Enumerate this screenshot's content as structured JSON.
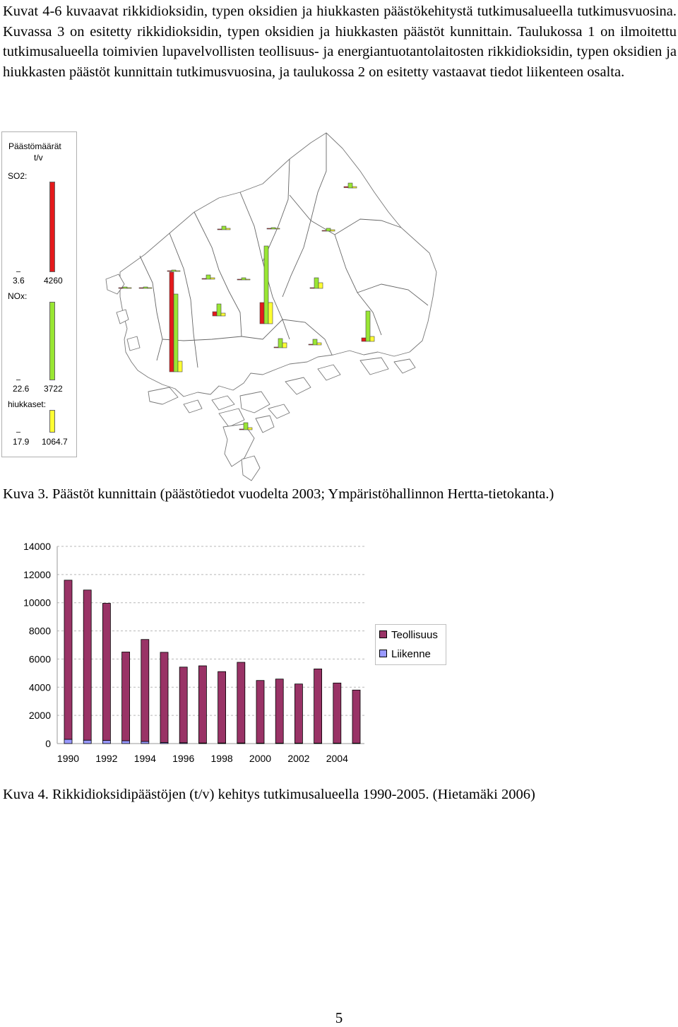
{
  "intro_text": "Kuvat 4-6 kuvaavat rikkidioksidin, typen oksidien ja hiukkasten päästökehitystä tutkimusalueella tutkimusvuosina. Kuvassa 3 on esitetty rikkidioksidin, typen oksidien ja hiukkasten päästöt kunnittain. Taulukossa 1 on ilmoitettu tutkimusalueella toimivien lupavelvollisten teollisuus- ja energiantuotantolaitosten rikkidioksidin, typen oksidien ja hiukkasten päästöt kunnittain tutkimusvuosina, ja taulukossa 2 on esitetty vastaavat tiedot liikenteen osalta.",
  "map_legend": {
    "title_line1": "Päästömäärät",
    "title_line2": "t/v",
    "so2_label": "SO2:",
    "so2_min": "3.6",
    "so2_max": "4260",
    "nox_label": "NOx:",
    "nox_min": "22.6",
    "nox_max": "3722",
    "particles_label": "hiukkaset:",
    "particles_min": "17.9",
    "particles_max": "1064.7",
    "colors": {
      "so2": "#e31a1c",
      "nox": "#99e633",
      "particles": "#ffff33"
    }
  },
  "caption_map": "Kuva 3. Päästöt kunnittain (päästötiedot vuodelta 2003; Ympäristöhallinnon Hertta-tietokanta.)",
  "chart_data": {
    "type": "bar",
    "stacked": true,
    "categories": [
      "1990",
      "1991",
      "1992",
      "1993",
      "1994",
      "1995",
      "1996",
      "1997",
      "1998",
      "1999",
      "2000",
      "2001",
      "2002",
      "2003",
      "2004",
      "2005"
    ],
    "x_tick_labels": [
      "1990",
      "1992",
      "1994",
      "1996",
      "1998",
      "2000",
      "2002",
      "2004"
    ],
    "series": [
      {
        "name": "Liikenne",
        "color": "#9999ff",
        "values": [
          300,
          240,
          220,
          200,
          150,
          80,
          60,
          40,
          40,
          40,
          30,
          30,
          30,
          30,
          30,
          30
        ]
      },
      {
        "name": "Teollisuus",
        "color": "#993366",
        "values": [
          11300,
          10660,
          9740,
          6300,
          7240,
          6400,
          5370,
          5480,
          5070,
          5730,
          4450,
          4550,
          4200,
          5270,
          4270,
          3770
        ]
      }
    ],
    "ylim": [
      0,
      14000
    ],
    "y_ticks": [
      "0",
      "2000",
      "4000",
      "6000",
      "8000",
      "10000",
      "12000",
      "14000"
    ],
    "grid": true,
    "legend_position": "right"
  },
  "caption_chart": "Kuva 4. Rikkidioksidipäästöjen (t/v) kehitys tutkimusalueella 1990-2005. (Hietamäki 2006)",
  "page_number": "5"
}
